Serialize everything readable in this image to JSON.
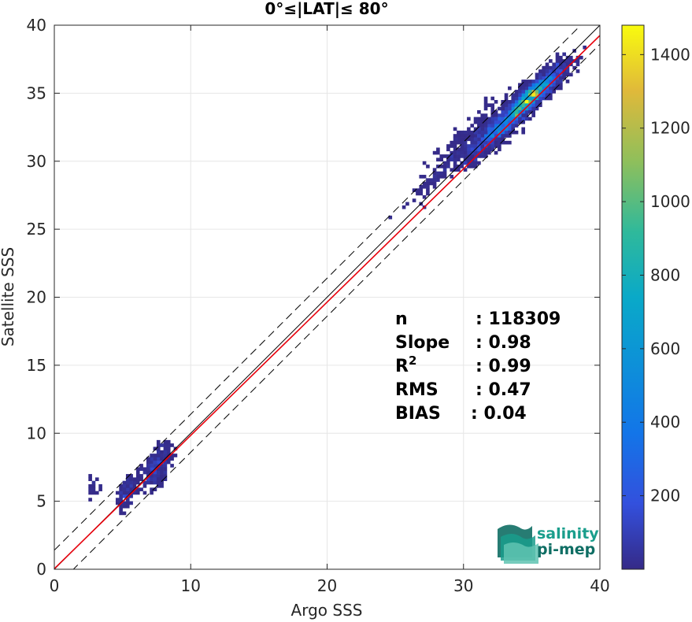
{
  "chart_data": {
    "type": "heatmap",
    "title": "0°≤|LAT|≤ 80°",
    "xlabel": "Argo SSS",
    "ylabel": "Satellite SSS",
    "xlim": [
      0,
      40
    ],
    "ylim": [
      0,
      40
    ],
    "xticks": [
      "0",
      "10",
      "20",
      "30",
      "40"
    ],
    "yticks": [
      "0",
      "5",
      "10",
      "15",
      "20",
      "25",
      "30",
      "35",
      "40"
    ],
    "grid": true,
    "colorbar": {
      "range": [
        0,
        1480
      ],
      "ticks": [
        "200",
        "400",
        "600",
        "800",
        "1000",
        "1200",
        "1400"
      ],
      "colormap": "parula"
    },
    "clusters": [
      {
        "x_center": 35.0,
        "y_center": 34.8,
        "x_spread": 1.2,
        "y_spread": 1.0,
        "count": 62000,
        "peak": 1480
      },
      {
        "x_center": 32.5,
        "y_center": 32.3,
        "x_spread": 1.2,
        "y_spread": 1.0,
        "count": 30000,
        "peak": 700
      },
      {
        "x_center": 30.5,
        "y_center": 31.5,
        "x_spread": 1.5,
        "y_spread": 1.5,
        "count": 8000,
        "peak": 150
      },
      {
        "x_center": 27.5,
        "y_center": 28.4,
        "x_spread": 1.0,
        "y_spread": 0.5,
        "count": 1500,
        "peak": 60
      },
      {
        "x_center": 7.5,
        "y_center": 7.5,
        "x_spread": 0.5,
        "y_spread": 1.3,
        "count": 9000,
        "peak": 300
      },
      {
        "x_center": 5.4,
        "y_center": 5.8,
        "x_spread": 0.4,
        "y_spread": 1.0,
        "count": 4000,
        "peak": 150
      },
      {
        "x_center": 2.9,
        "y_center": 6.2,
        "x_spread": 0.2,
        "y_spread": 1.0,
        "count": 600,
        "peak": 40
      }
    ],
    "reference_lines": [
      {
        "type": "identity",
        "slope": 1.0,
        "intercept": 0.0,
        "color": "#000000",
        "style": "solid"
      },
      {
        "type": "fit",
        "slope": 0.98,
        "intercept": 0.04,
        "color": "#e8000b",
        "style": "solid"
      },
      {
        "type": "bound_upper",
        "slope": 1.0,
        "intercept": 1.4,
        "color": "#000000",
        "style": "dashed"
      },
      {
        "type": "bound_lower",
        "slope": 1.0,
        "intercept": -1.4,
        "color": "#000000",
        "style": "dashed"
      }
    ],
    "stats": [
      {
        "label": "n",
        "value": ": 118309"
      },
      {
        "label": "Slope",
        "value": ": 0.98"
      },
      {
        "label": "R",
        "sup": "2",
        "value": ": 0.99"
      },
      {
        "label": "RMS",
        "value": ": 0.47"
      },
      {
        "label": "BIAS",
        "value": ": 0.04"
      }
    ]
  },
  "logo": {
    "line1": "salinity",
    "line2": "pi-mep",
    "color_primary": "#1a9e8c",
    "color_dark": "#0f6e64"
  }
}
